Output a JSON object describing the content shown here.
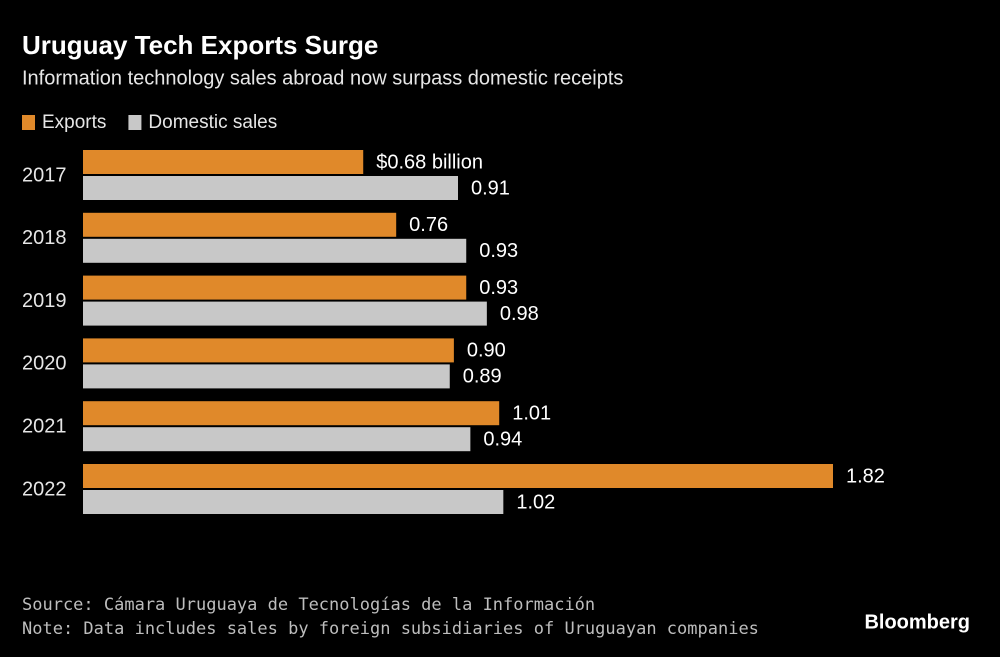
{
  "chart_data": {
    "type": "grouped-hbar",
    "title": "Uruguay Tech Exports Surge",
    "subtitle": "Information technology sales abroad now surpass domestic receipts",
    "categories": [
      "2017",
      "2018",
      "2019",
      "2020",
      "2021",
      "2022"
    ],
    "series": [
      {
        "name": "Exports",
        "color": "#e0892a",
        "values": [
          0.68,
          0.76,
          0.93,
          0.9,
          1.01,
          1.82
        ],
        "value_labels": [
          "$0.68 billion",
          "0.76",
          "0.93",
          "0.90",
          "1.01",
          "1.82"
        ]
      },
      {
        "name": "Domestic sales",
        "color": "#c8c8c8",
        "values": [
          0.91,
          0.93,
          0.98,
          0.89,
          0.94,
          1.02
        ],
        "value_labels": [
          "0.91",
          "0.93",
          "0.98",
          "0.89",
          "0.94",
          "1.02"
        ]
      }
    ],
    "source": "Source: Cámara Uruguaya de Tecnologías de la Información",
    "note": "Note: Data includes sales by foreign subsidiaries of Uruguayan companies",
    "brand": "Bloomberg"
  }
}
